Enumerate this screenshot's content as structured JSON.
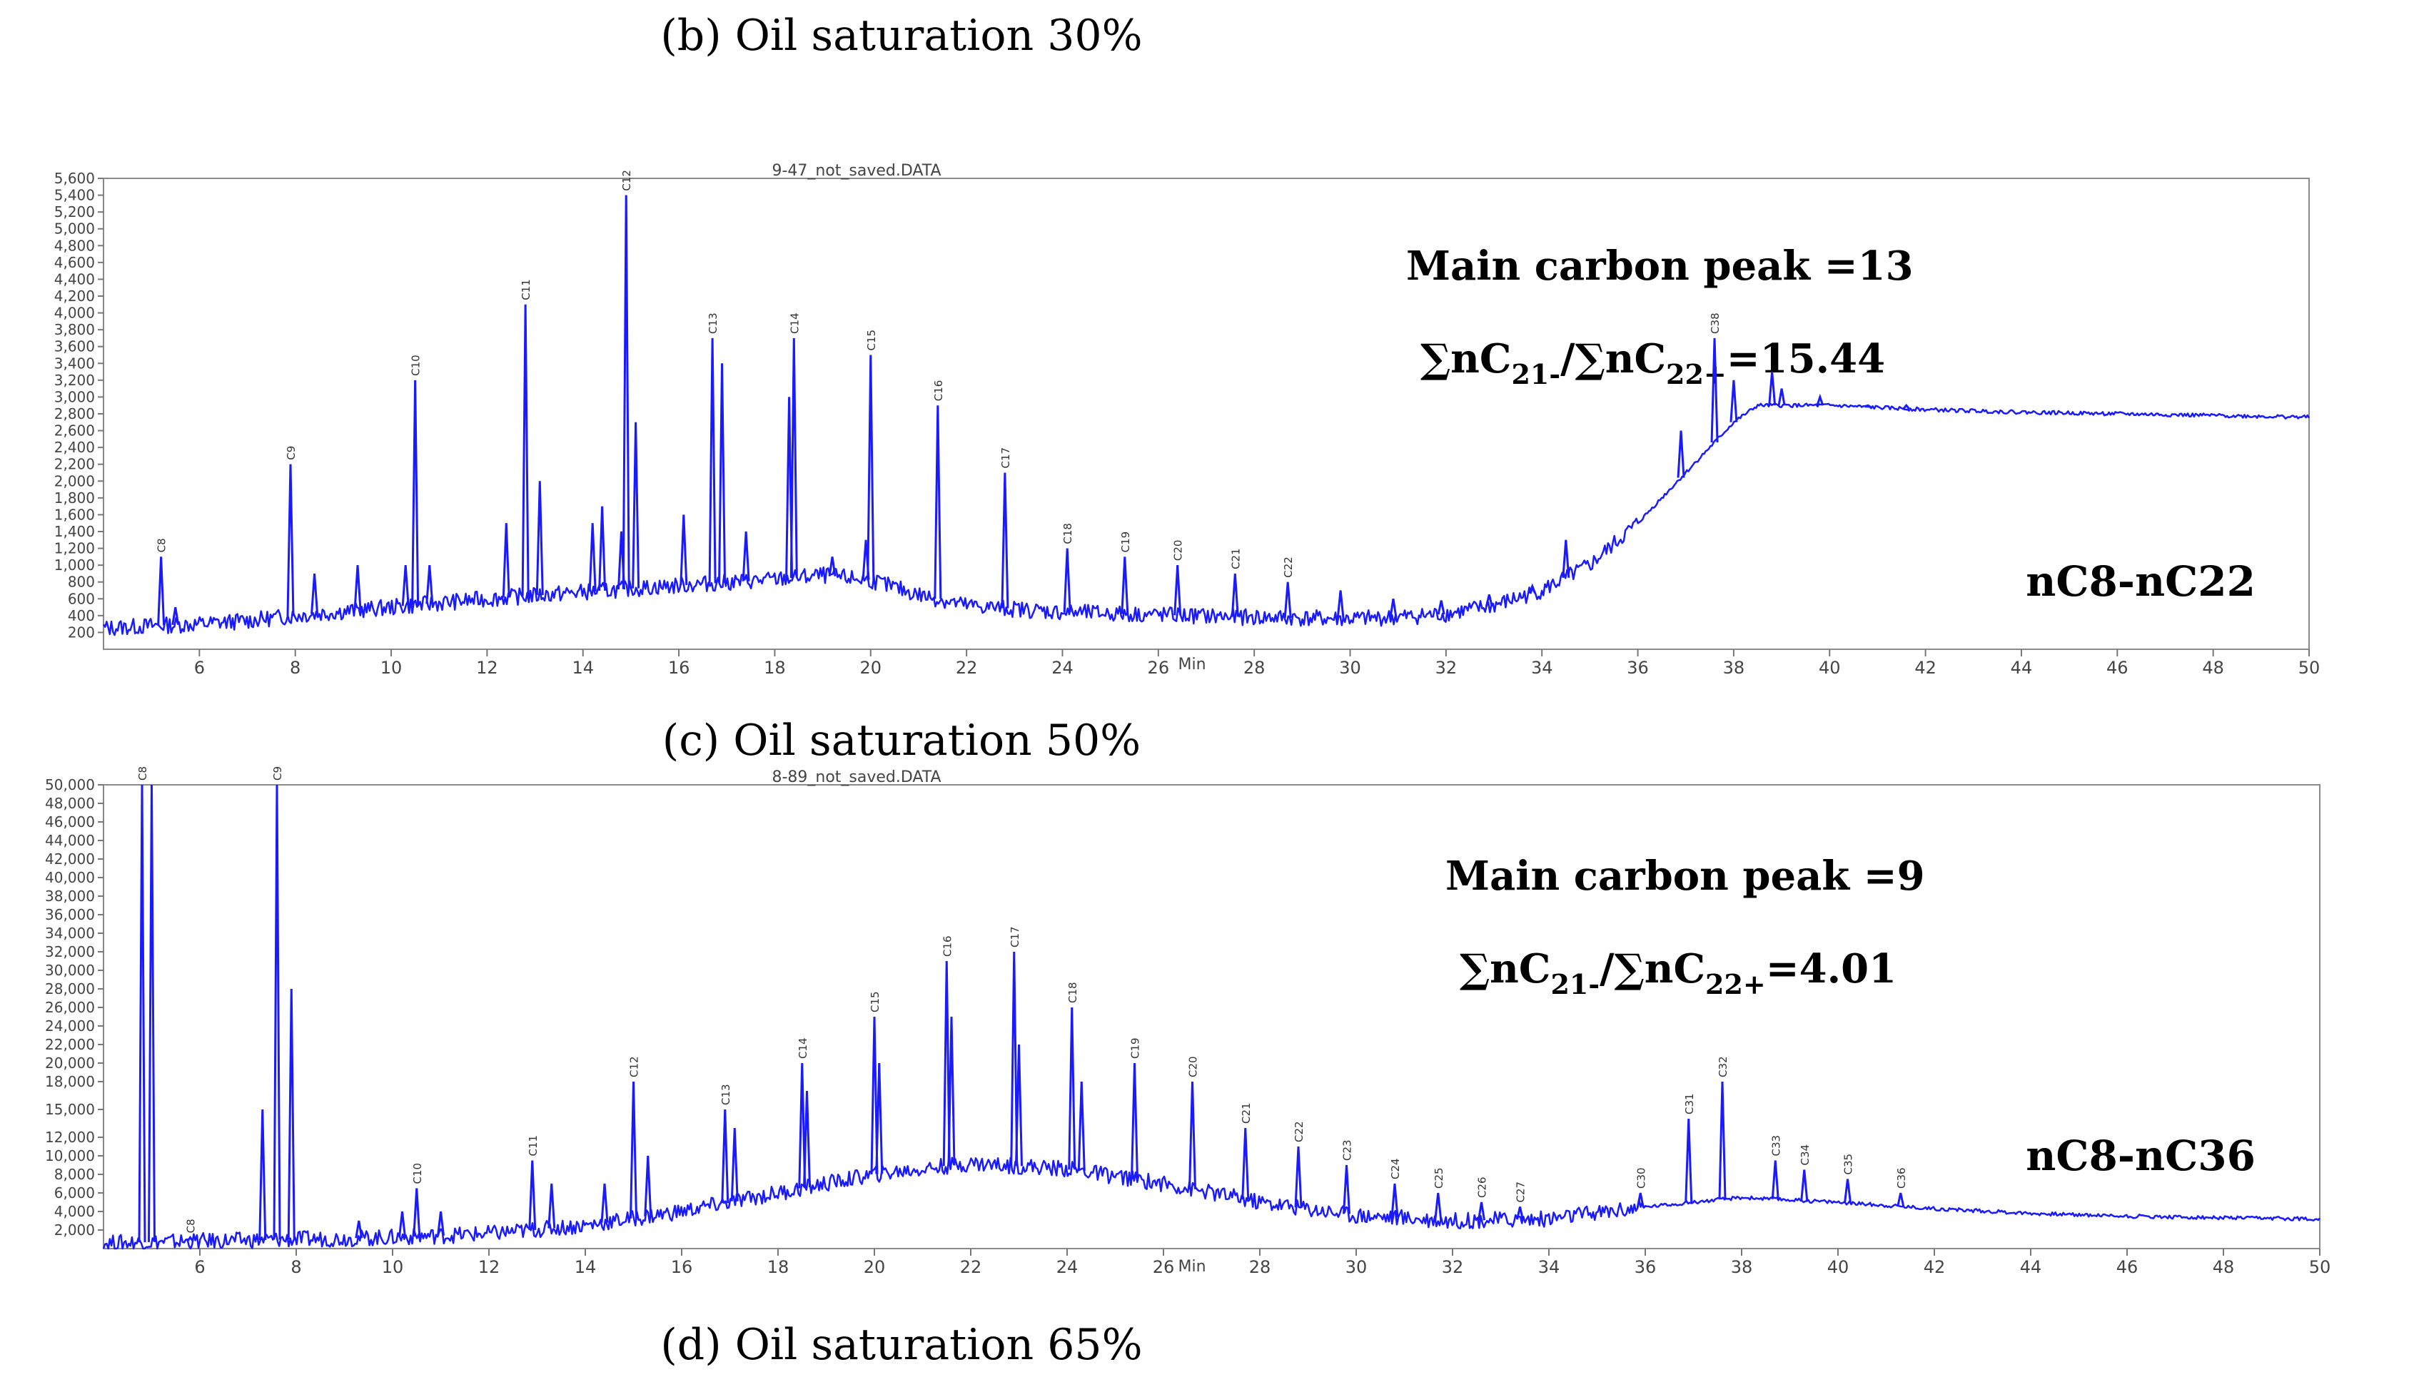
{
  "captions": {
    "top": "(b) Oil saturation 30%",
    "middle": "(c) Oil saturation 50%",
    "bottom": "(d) Oil saturation 65%"
  },
  "colors": {
    "trace": "#1a1aff",
    "axis": "#555555",
    "text": "#000000"
  },
  "chart_data": [
    {
      "type": "line",
      "file_title": "9-47_not_saved.DATA",
      "xlabel": "Min",
      "xlim": [
        4,
        50
      ],
      "ylim": [
        0,
        5600
      ],
      "x_ticks": [
        6,
        8,
        10,
        12,
        14,
        16,
        18,
        20,
        22,
        24,
        26,
        28,
        30,
        32,
        34,
        36,
        38,
        40,
        42,
        44,
        46,
        48,
        50
      ],
      "y_ticks": [
        200,
        400,
        600,
        800,
        1000,
        1200,
        1400,
        1600,
        1800,
        2000,
        2200,
        2400,
        2600,
        2800,
        3000,
        3200,
        3400,
        3600,
        3800,
        4000,
        4200,
        4400,
        4600,
        4800,
        5000,
        5200,
        5400,
        5600
      ],
      "y_tick_labels": [
        "200",
        "400",
        "600",
        "800",
        "1,000",
        "1,200",
        "1,400",
        "1,600",
        "1,800",
        "2,000",
        "2,200",
        "2,400",
        "2,600",
        "2,800",
        "3,000",
        "3,200",
        "3,400",
        "3,600",
        "3,800",
        "4,000",
        "4,200",
        "4,400",
        "4,600",
        "4,800",
        "5,000",
        "5,200",
        "5,400",
        "5,600"
      ],
      "annotation_main_peak": "Main carbon peak =13",
      "annotation_ratio_prefix": "∑nC",
      "annotation_ratio_sub1": "21-",
      "annotation_ratio_mid": "/∑nC",
      "annotation_ratio_sub2": "22+",
      "annotation_ratio_value": "=15.44",
      "range_label": "nC8-nC22",
      "series": [
        {
          "name": "baseline",
          "x": [
            4,
            5,
            6,
            7,
            8,
            10,
            12,
            14,
            16,
            18,
            19,
            20,
            21,
            22,
            24,
            26,
            28,
            30,
            31,
            32,
            33,
            34,
            35,
            36,
            37,
            38,
            38.5,
            40,
            42,
            44,
            46,
            48,
            50
          ],
          "values": [
            250,
            280,
            300,
            340,
            400,
            500,
            600,
            680,
            760,
            830,
            880,
            820,
            650,
            520,
            440,
            410,
            380,
            360,
            380,
            420,
            520,
            700,
            1000,
            1500,
            2100,
            2700,
            2900,
            2900,
            2850,
            2820,
            2800,
            2780,
            2760
          ]
        },
        {
          "name": "peaks",
          "x": [
            5.2,
            5.5,
            7.9,
            8.4,
            9.3,
            10.3,
            10.5,
            10.8,
            12.4,
            12.8,
            13.1,
            14.2,
            14.4,
            14.8,
            14.9,
            15.1,
            16.1,
            16.7,
            16.9,
            17.4,
            18.3,
            18.4,
            19.2,
            19.9,
            20.0,
            21.4,
            22.8,
            24.1,
            25.3,
            26.4,
            27.6,
            28.7,
            29.8,
            30.9,
            31.9,
            32.9,
            33.8,
            34.5,
            36.9,
            37.6,
            38.0,
            38.8,
            39.0,
            39.8,
            40.8,
            41.6
          ],
          "values": [
            1100,
            500,
            2200,
            900,
            1000,
            1000,
            3200,
            1000,
            1500,
            4100,
            2000,
            1500,
            1700,
            1400,
            5400,
            2700,
            1600,
            3700,
            3400,
            1400,
            3000,
            3700,
            1100,
            1300,
            3500,
            2900,
            2100,
            1200,
            1100,
            1000,
            900,
            800,
            700,
            600,
            580,
            650,
            750,
            1300,
            2600,
            3700,
            3200,
            3300,
            3100,
            3000,
            2900,
            2900
          ],
          "labels": [
            "C8",
            "",
            "C9",
            "",
            "",
            "",
            "C10",
            "",
            "",
            "C11",
            "",
            "",
            "",
            "",
            "C12",
            "",
            "",
            "C13",
            "",
            "",
            "",
            "C14",
            "",
            "",
            "C15",
            "C16",
            "C17",
            "C18",
            "C19",
            "C20",
            "C21",
            "C22",
            "",
            "",
            "",
            "",
            "",
            "",
            "",
            "C38",
            "",
            "",
            "",
            "",
            "",
            ""
          ]
        }
      ]
    },
    {
      "type": "line",
      "file_title": "8-89_not_saved.DATA",
      "xlabel": "Min",
      "xlim": [
        4,
        50
      ],
      "ylim": [
        0,
        50000
      ],
      "x_ticks": [
        6,
        8,
        10,
        12,
        14,
        16,
        18,
        20,
        22,
        24,
        26,
        28,
        30,
        32,
        34,
        36,
        38,
        40,
        42,
        44,
        46,
        48,
        50
      ],
      "y_ticks": [
        2000,
        4000,
        6000,
        8000,
        10000,
        12000,
        15000,
        18000,
        20000,
        22000,
        24000,
        26000,
        28000,
        30000,
        32000,
        34000,
        36000,
        38000,
        40000,
        42000,
        44000,
        46000,
        48000,
        50000
      ],
      "y_tick_labels": [
        "2,000",
        "4,000",
        "6,000",
        "8,000",
        "10,000",
        "12,000",
        "15,000",
        "18,000",
        "20,000",
        "22,000",
        "24,000",
        "26,000",
        "28,000",
        "30,000",
        "32,000",
        "34,000",
        "36,000",
        "38,000",
        "40,000",
        "42,000",
        "44,000",
        "46,000",
        "48,000",
        "50,000"
      ],
      "annotation_main_peak": "Main carbon peak =9",
      "annotation_ratio_prefix": "∑nC",
      "annotation_ratio_sub1": "21-",
      "annotation_ratio_mid": "/∑nC",
      "annotation_ratio_sub2": "22+",
      "annotation_ratio_value": "=4.01",
      "range_label": "nC8-nC36",
      "series": [
        {
          "name": "baseline",
          "x": [
            4,
            6,
            8,
            10,
            12,
            14,
            16,
            18,
            20,
            22,
            24,
            26,
            28,
            30,
            32,
            34,
            36,
            38,
            40,
            42,
            44,
            46,
            48,
            50
          ],
          "values": [
            600,
            800,
            1000,
            1200,
            1600,
            2500,
            4000,
            6000,
            8000,
            9200,
            8600,
            7000,
            5000,
            3600,
            3000,
            3200,
            4500,
            5500,
            5000,
            4300,
            3800,
            3500,
            3300,
            3200
          ]
        },
        {
          "name": "peaks",
          "x": [
            4.8,
            5.0,
            5.8,
            7.3,
            7.6,
            7.9,
            9.3,
            10.2,
            10.5,
            11.0,
            12.9,
            13.3,
            14.4,
            15.0,
            15.3,
            16.9,
            17.1,
            18.5,
            18.6,
            20.0,
            20.1,
            21.5,
            21.6,
            22.9,
            23.0,
            24.1,
            24.3,
            25.4,
            26.6,
            27.7,
            28.8,
            29.8,
            30.8,
            31.7,
            32.6,
            33.4,
            35.9,
            36.9,
            37.6,
            38.7,
            39.3,
            40.2,
            41.3
          ],
          "values": [
            50000,
            50000,
            1200,
            15000,
            50000,
            28000,
            3000,
            4000,
            6500,
            4000,
            9500,
            7000,
            7000,
            18000,
            10000,
            15000,
            13000,
            20000,
            17000,
            25000,
            20000,
            31000,
            25000,
            32000,
            22000,
            26000,
            18000,
            20000,
            18000,
            13000,
            11000,
            9000,
            7000,
            6000,
            5000,
            4500,
            6000,
            14000,
            18000,
            9500,
            8500,
            7500,
            6000
          ],
          "labels": [
            "C8",
            "",
            "C8",
            "",
            "C9",
            "",
            "",
            "",
            "C10",
            "",
            "C11",
            "",
            "",
            "C12",
            "",
            "C13",
            "",
            "C14",
            "",
            "C15",
            "",
            "C16",
            "",
            "C17",
            "",
            "C18",
            "",
            "C19",
            "C20",
            "C21",
            "C22",
            "C23",
            "C24",
            "C25",
            "C26",
            "C27",
            "C30",
            "C31",
            "C32",
            "C33",
            "C34",
            "C35",
            "C36"
          ]
        }
      ]
    }
  ]
}
